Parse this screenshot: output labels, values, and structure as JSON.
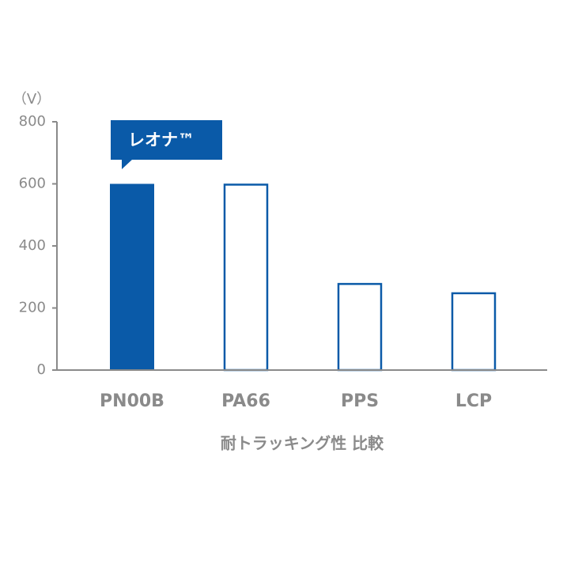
{
  "chart_data": {
    "type": "bar",
    "ylabel": "（V）",
    "xlabel": "耐トラッキング性 比較",
    "categories": [
      "PN00B",
      "PA66",
      "PPS",
      "LCP"
    ],
    "values": [
      600,
      600,
      280,
      250
    ],
    "color": "#0a5aa8",
    "filled": [
      true,
      false,
      false,
      false
    ],
    "annotation": {
      "text": "レオナ™",
      "target": "PN00B"
    },
    "ylim": [
      0,
      800
    ],
    "yticks": [
      0,
      200,
      400,
      600,
      800
    ],
    "grid": false
  }
}
